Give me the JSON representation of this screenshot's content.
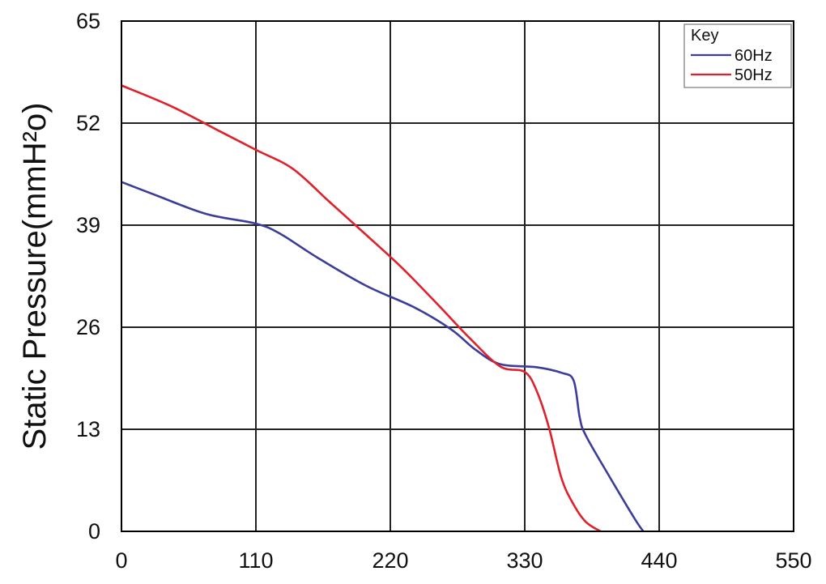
{
  "chart_data": {
    "type": "line",
    "title": "",
    "xlabel": "",
    "ylabel": "Static Pressure(mmH²o)",
    "xlim": [
      0,
      550
    ],
    "ylim": [
      0,
      65
    ],
    "xticks": [
      0,
      110,
      220,
      330,
      440,
      550
    ],
    "yticks": [
      0,
      13,
      26,
      39,
      52,
      65
    ],
    "grid": true,
    "legend": {
      "title": "Key",
      "position": "top-right"
    },
    "series": [
      {
        "name": "60Hz",
        "color": "#3c3c9a",
        "x": [
          0,
          30,
          70,
          110,
          130,
          160,
          200,
          240,
          270,
          290,
          310,
          340,
          360,
          370,
          375,
          380,
          400,
          420,
          427
        ],
        "y": [
          44.5,
          42.7,
          40.4,
          39.2,
          37.9,
          34.9,
          31.3,
          28.5,
          25.7,
          23.1,
          21.3,
          20.9,
          20.2,
          19.2,
          14.5,
          12.2,
          6.8,
          1.6,
          0
        ]
      },
      {
        "name": "50Hz",
        "color": "#e0202a",
        "x": [
          0,
          40,
          80,
          110,
          140,
          170,
          200,
          230,
          260,
          285,
          310,
          330,
          340,
          350,
          360,
          370,
          380,
          392
        ],
        "y": [
          56.8,
          54.2,
          51.0,
          48.6,
          46.2,
          42.0,
          37.8,
          33.5,
          28.7,
          24.6,
          21.0,
          20.3,
          17.8,
          13.1,
          6.8,
          3.4,
          1.2,
          0
        ]
      }
    ]
  }
}
